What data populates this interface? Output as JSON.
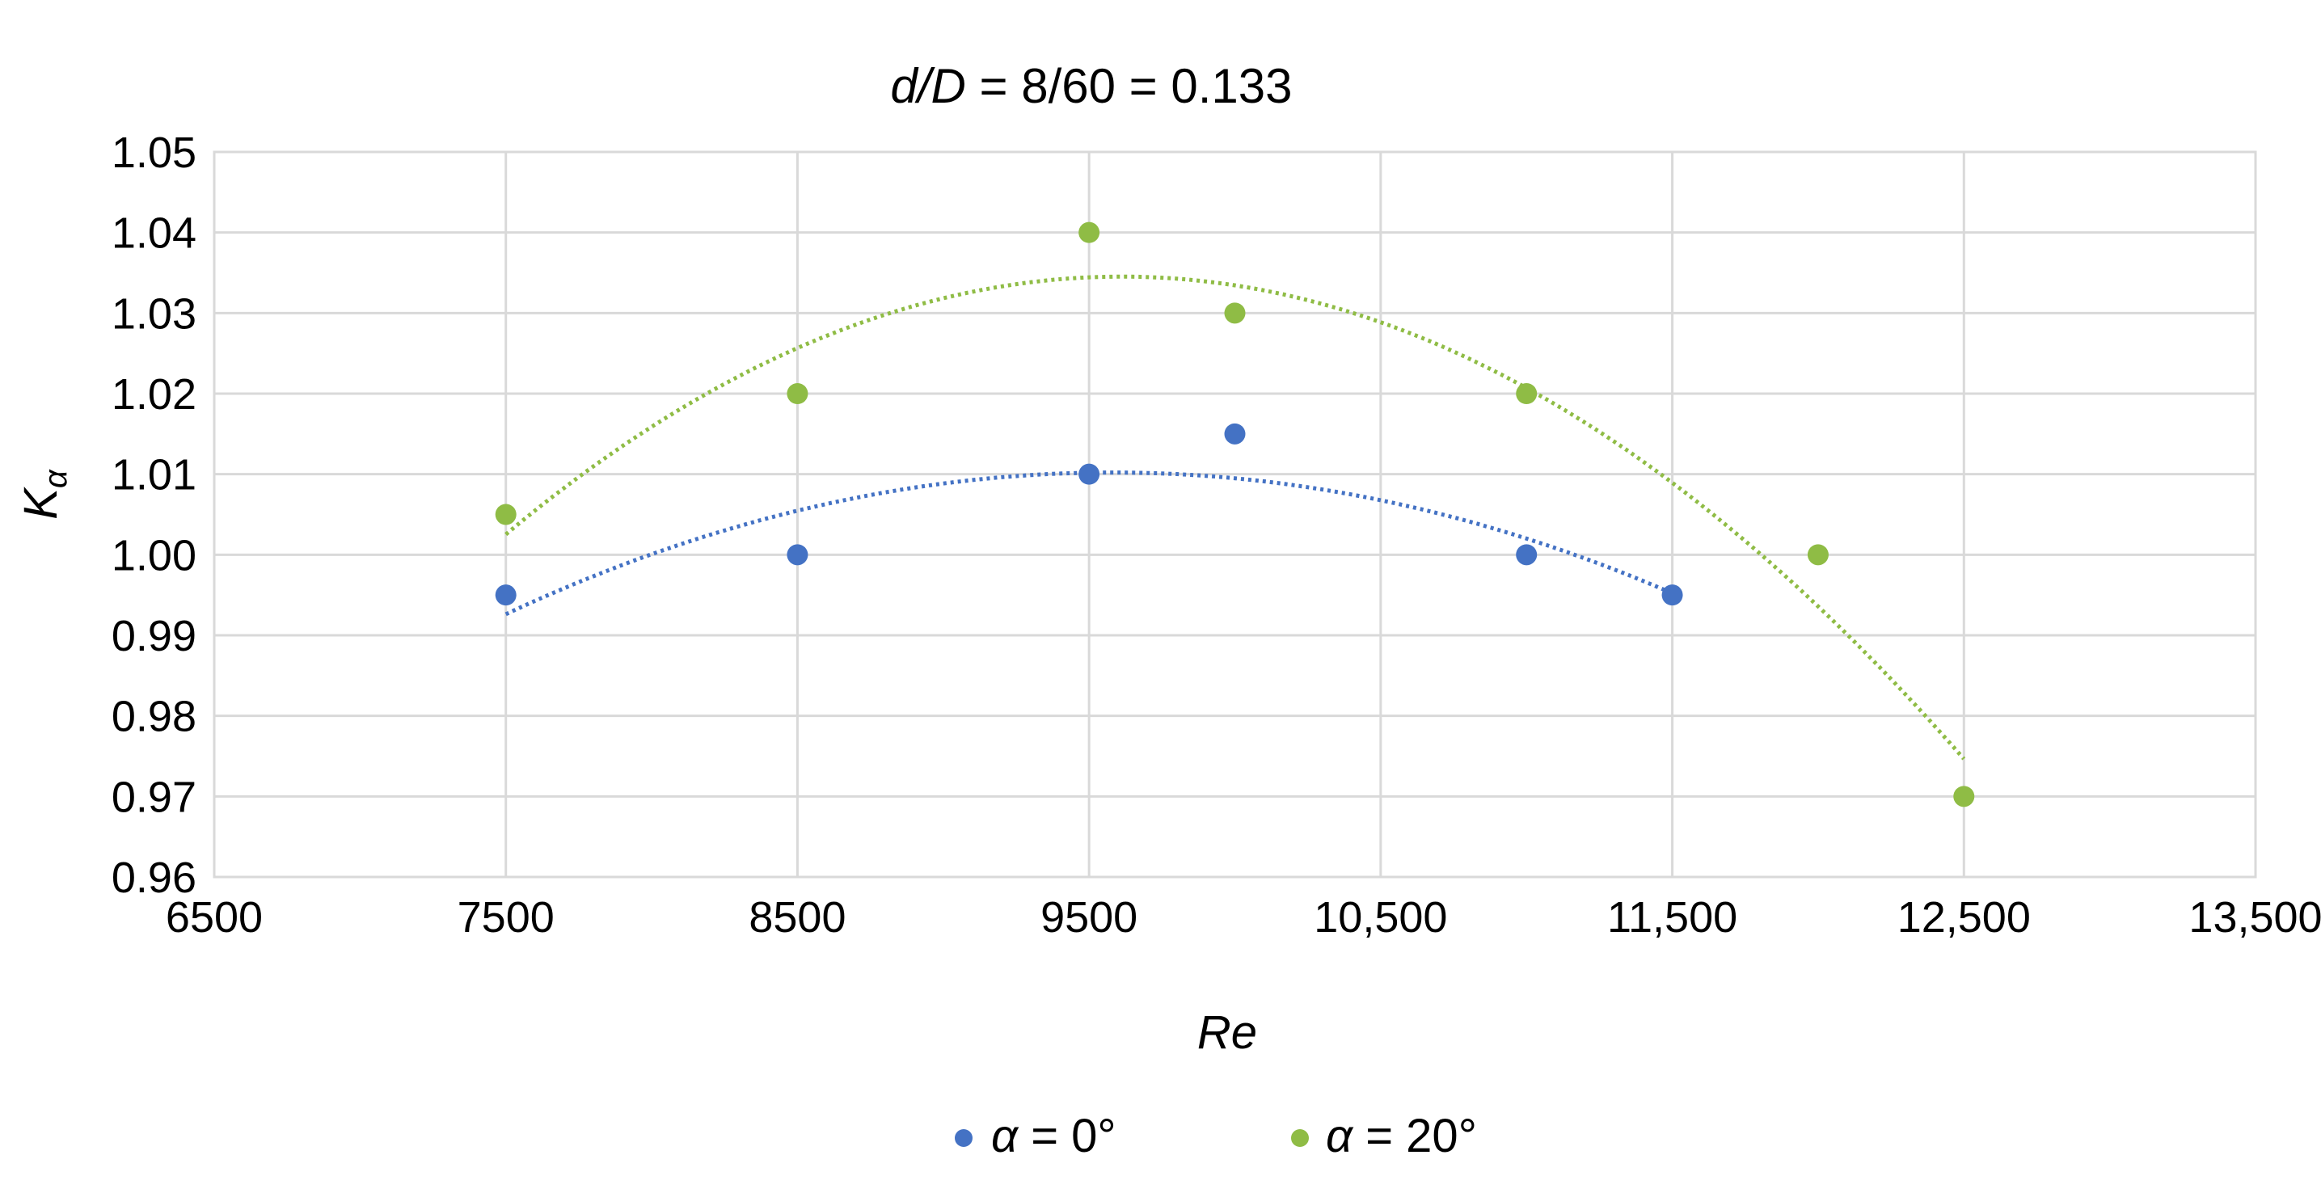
{
  "chart_data": {
    "type": "scatter",
    "title_italic": "d/D",
    "title_rest": " = 8/60 = 0.133",
    "xlabel": "Re",
    "ylabel_main": "K",
    "ylabel_sub": "α",
    "xlim": [
      6500,
      13500
    ],
    "ylim": [
      0.96,
      1.05
    ],
    "grid": true,
    "legend_position": "bottom",
    "x_ticks": [
      6500,
      7500,
      8500,
      9500,
      10500,
      11500,
      12500,
      13500
    ],
    "x_tick_labels": [
      "6500",
      "7500",
      "8500",
      "9500",
      "10,500",
      "11,500",
      "12,500",
      "13,500"
    ],
    "y_ticks": [
      0.96,
      0.97,
      0.98,
      0.99,
      1.0,
      1.01,
      1.02,
      1.03,
      1.04,
      1.05
    ],
    "y_tick_labels": [
      "0.96",
      "0.97",
      "0.98",
      "0.99",
      "1.00",
      "1.01",
      "1.02",
      "1.03",
      "1.04",
      "1.05"
    ],
    "series": [
      {
        "name_symbol": "α",
        "name_rest": " = 0°",
        "color": "#4472c4",
        "trendline": "polynomial (dotted)",
        "x": [
          7500,
          8500,
          9500,
          10000,
          11000,
          11500
        ],
        "y": [
          0.995,
          1.0,
          1.01,
          1.015,
          1.0,
          0.995
        ]
      },
      {
        "name_symbol": "α",
        "name_rest": " = 20°",
        "color": "#8fbc45",
        "trendline": "polynomial (dotted)",
        "x": [
          7500,
          8500,
          9500,
          10000,
          11000,
          12000,
          12500
        ],
        "y": [
          1.005,
          1.02,
          1.04,
          1.03,
          1.02,
          1.0,
          0.97
        ]
      }
    ]
  }
}
